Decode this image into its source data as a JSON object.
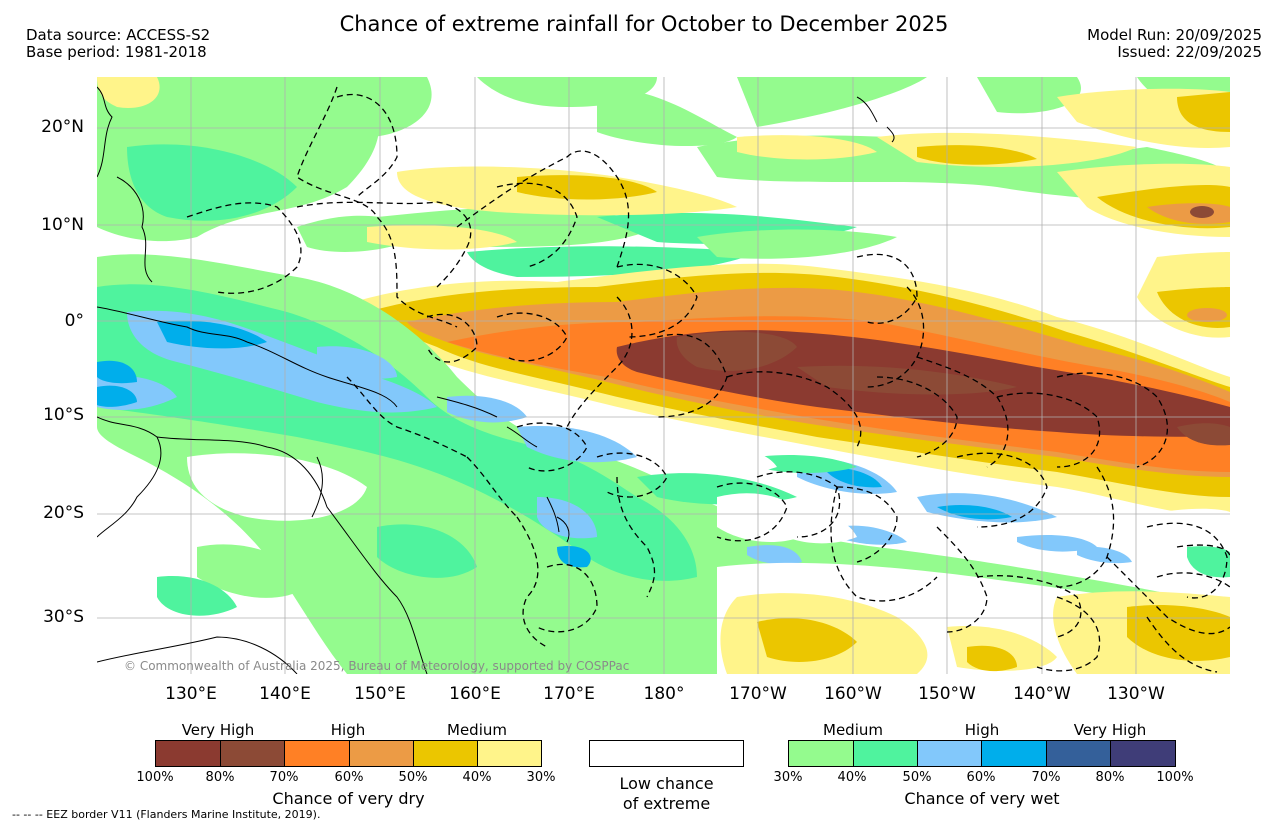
{
  "title": "Chance of extreme rainfall for October to December 2025",
  "header_left": {
    "data_source": "Data source: ACCESS-S2",
    "base_period": "Base period: 1981-2018"
  },
  "header_right": {
    "model_run": "Model Run: 20/09/2025",
    "issued": "Issued: 22/09/2025"
  },
  "map": {
    "lat_labels": [
      "20°N",
      "10°N",
      "0°",
      "10°S",
      "20°S",
      "30°S"
    ],
    "lon_labels": [
      "130°E",
      "140°E",
      "150°E",
      "160°E",
      "170°E",
      "180°",
      "170°W",
      "160°W",
      "150°W",
      "140°W",
      "130°W"
    ],
    "copyright": "© Commonwealth of Australia 2025, Bureau of Meteorology, supported by COSPPac"
  },
  "legend": {
    "dry": {
      "categories": [
        "Very High",
        "High",
        "Medium"
      ],
      "colors": [
        "#8b3a30",
        "#8c4a36",
        "#ff8025",
        "#ec9b45",
        "#ebc600",
        "#fff48a"
      ],
      "ticks": [
        "100%",
        "80%",
        "70%",
        "60%",
        "50%",
        "40%",
        "30%"
      ],
      "axis_label": "Chance of very dry"
    },
    "low": {
      "label_line1": "Low chance",
      "label_line2": "of extreme"
    },
    "wet": {
      "categories": [
        "Medium",
        "High",
        "Very High"
      ],
      "colors": [
        "#94fb8e",
        "#4ff39e",
        "#82c8fb",
        "#00aeeb",
        "#34609a",
        "#3f3d78"
      ],
      "ticks": [
        "30%",
        "40%",
        "50%",
        "60%",
        "70%",
        "80%",
        "100%"
      ],
      "axis_label": "Chance of very wet"
    },
    "eez_note": "-- -- -- EEZ border V11 (Flanders Marine Institute, 2019)."
  }
}
